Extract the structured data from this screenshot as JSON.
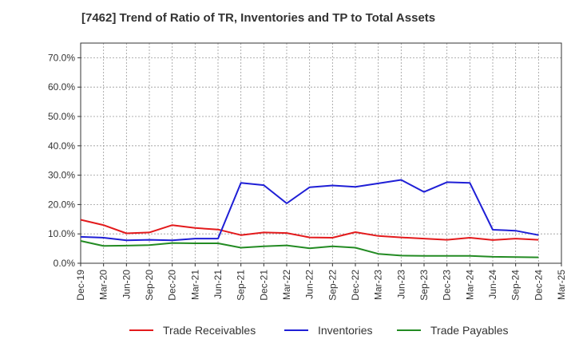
{
  "chart_data": {
    "type": "line",
    "title": "[7462]  Trend of Ratio of TR, Inventories and TP to Total Assets",
    "xlabel": "",
    "ylabel": "",
    "categories": [
      "Dec-19",
      "Mar-20",
      "Jun-20",
      "Sep-20",
      "Dec-20",
      "Mar-21",
      "Jun-21",
      "Sep-21",
      "Dec-21",
      "Mar-22",
      "Jun-22",
      "Sep-22",
      "Dec-22",
      "Mar-23",
      "Jun-23",
      "Sep-23",
      "Dec-23",
      "Mar-24",
      "Jun-24",
      "Sep-24",
      "Dec-24",
      "Mar-25"
    ],
    "ylim": [
      0,
      75
    ],
    "yticks": [
      0,
      10,
      20,
      30,
      40,
      50,
      60,
      70
    ],
    "ytick_labels": [
      "0.0%",
      "10.0%",
      "20.0%",
      "30.0%",
      "40.0%",
      "50.0%",
      "60.0%",
      "70.0%"
    ],
    "grid": true,
    "legend_position": "bottom",
    "series": [
      {
        "name": "Trade Receivables",
        "color": "#e31a1c",
        "values": [
          14.8,
          13.0,
          10.2,
          10.5,
          13.0,
          12.0,
          11.5,
          9.6,
          10.5,
          10.3,
          8.8,
          8.7,
          10.6,
          9.3,
          8.8,
          8.4,
          8.0,
          8.7,
          7.9,
          8.4,
          8.0,
          null
        ]
      },
      {
        "name": "Inventories",
        "color": "#1f1fd6",
        "values": [
          9.0,
          8.7,
          7.8,
          8.0,
          7.8,
          8.4,
          8.4,
          27.4,
          26.6,
          20.4,
          25.9,
          26.5,
          26.0,
          27.2,
          28.4,
          24.3,
          27.6,
          27.4,
          11.4,
          11.1,
          9.6,
          null
        ]
      },
      {
        "name": "Trade Payables",
        "color": "#238b23",
        "values": [
          7.6,
          5.9,
          6.0,
          6.2,
          6.9,
          6.8,
          6.8,
          5.3,
          5.8,
          6.1,
          5.1,
          5.8,
          5.3,
          3.2,
          2.6,
          2.5,
          2.5,
          2.5,
          2.2,
          2.1,
          2.0,
          null
        ]
      }
    ]
  }
}
